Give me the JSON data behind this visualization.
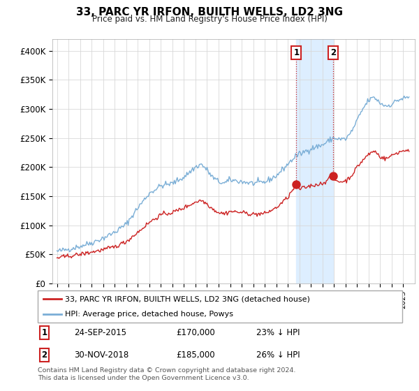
{
  "title": "33, PARC YR IRFON, BUILTH WELLS, LD2 3NG",
  "subtitle": "Price paid vs. HM Land Registry's House Price Index (HPI)",
  "ylabel_ticks": [
    "£0",
    "£50K",
    "£100K",
    "£150K",
    "£200K",
    "£250K",
    "£300K",
    "£350K",
    "£400K"
  ],
  "ytick_vals": [
    0,
    50000,
    100000,
    150000,
    200000,
    250000,
    300000,
    350000,
    400000
  ],
  "ylim": [
    0,
    420000
  ],
  "transactions": [
    {
      "date_num": 2015.73,
      "price": 170000,
      "label": "1",
      "date_str": "24-SEP-2015",
      "pct": "23% ↓ HPI"
    },
    {
      "date_num": 2018.92,
      "price": 185000,
      "label": "2",
      "date_str": "30-NOV-2018",
      "pct": "26% ↓ HPI"
    }
  ],
  "hpi_color": "#7aaed6",
  "price_color": "#cc2222",
  "shade_color": "#ddeeff",
  "legend_label_red": "33, PARC YR IRFON, BUILTH WELLS, LD2 3NG (detached house)",
  "legend_label_blue": "HPI: Average price, detached house, Powys",
  "footnote": "Contains HM Land Registry data © Crown copyright and database right 2024.\nThis data is licensed under the Open Government Licence v3.0.",
  "marker1_x": 2015.73,
  "marker2_x": 2018.92,
  "xstart": 1995.0,
  "xend": 2025.5
}
